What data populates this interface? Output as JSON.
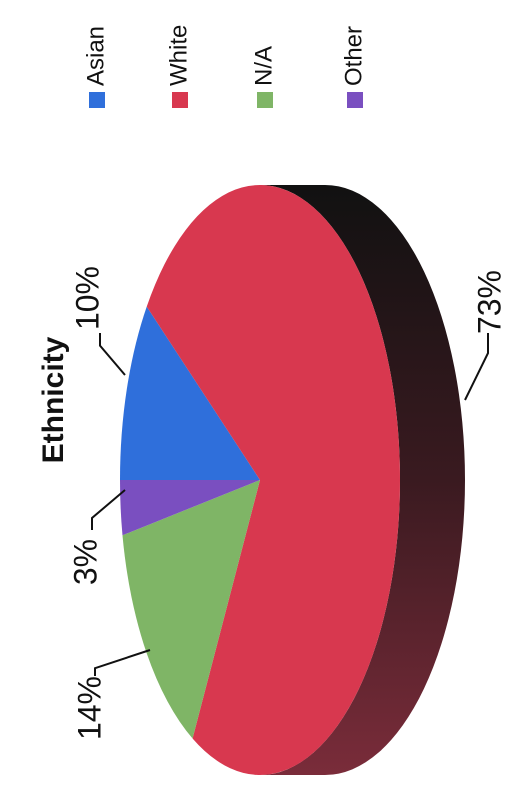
{
  "chart_data": {
    "type": "pie",
    "title": "Ethnicity",
    "categories": [
      "Asian",
      "White",
      "N/A",
      "Other"
    ],
    "values": [
      10,
      73,
      14,
      3
    ],
    "value_labels": [
      "10%",
      "73%",
      "14%",
      "3%"
    ],
    "colors": [
      "#2f6fdb",
      "#d8384f",
      "#7fb566",
      "#7a4fc0"
    ],
    "legend": "right"
  }
}
